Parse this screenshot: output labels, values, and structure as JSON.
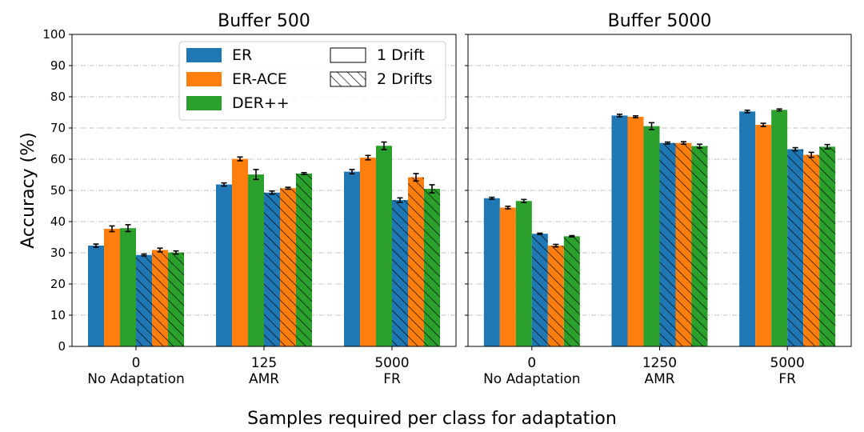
{
  "chart_data": {
    "type": "bar",
    "ylabel": "Accuracy (%)",
    "xlabel": "Samples required per class for adaptation",
    "ylim": [
      0,
      100
    ],
    "yticks": [
      0,
      10,
      20,
      30,
      40,
      50,
      60,
      70,
      80,
      90,
      100
    ],
    "grid": "horizontal dashed",
    "legend": {
      "placement": "top-left of first panel",
      "methods": [
        {
          "name": "ER",
          "color": "#1f77b4"
        },
        {
          "name": "ER-ACE",
          "color": "#ff7f0e"
        },
        {
          "name": "DER++",
          "color": "#2ca02c"
        }
      ],
      "drifts": [
        {
          "name": "1 Drift",
          "hatch": false
        },
        {
          "name": "2 Drifts",
          "hatch": true
        }
      ]
    },
    "panels": [
      {
        "title": "Buffer 500",
        "categories": [
          {
            "value": "0",
            "name": "No Adaptation"
          },
          {
            "value": "125",
            "name": "AMR"
          },
          {
            "value": "5000",
            "name": "FR"
          }
        ],
        "series": [
          {
            "method": "ER",
            "drift": "1 Drift",
            "values": [
              32.3,
              51.9,
              56.0
            ],
            "errors": [
              0.5,
              0.5,
              0.7
            ]
          },
          {
            "method": "ER-ACE",
            "drift": "1 Drift",
            "values": [
              37.7,
              60.1,
              60.5
            ],
            "errors": [
              0.9,
              0.6,
              0.7
            ]
          },
          {
            "method": "DER++",
            "drift": "1 Drift",
            "values": [
              37.9,
              55.1,
              64.3
            ],
            "errors": [
              1.1,
              1.6,
              1.2
            ]
          },
          {
            "method": "ER",
            "drift": "2 Drifts",
            "values": [
              29.3,
              49.3,
              46.9
            ],
            "errors": [
              0.3,
              0.5,
              0.7
            ]
          },
          {
            "method": "ER-ACE",
            "drift": "2 Drifts",
            "values": [
              30.9,
              50.7,
              54.2
            ],
            "errors": [
              0.6,
              0.3,
              1.2
            ]
          },
          {
            "method": "DER++",
            "drift": "2 Drifts",
            "values": [
              30.1,
              55.4,
              50.5
            ],
            "errors": [
              0.5,
              0.3,
              1.3
            ]
          }
        ]
      },
      {
        "title": "Buffer 5000",
        "categories": [
          {
            "value": "0",
            "name": "No Adaptation"
          },
          {
            "value": "1250",
            "name": "AMR"
          },
          {
            "value": "5000",
            "name": "FR"
          }
        ],
        "series": [
          {
            "method": "ER",
            "drift": "1 Drift",
            "values": [
              47.5,
              74.0,
              75.3
            ],
            "errors": [
              0.3,
              0.4,
              0.4
            ]
          },
          {
            "method": "ER-ACE",
            "drift": "1 Drift",
            "values": [
              44.5,
              73.6,
              71.0
            ],
            "errors": [
              0.4,
              0.3,
              0.5
            ]
          },
          {
            "method": "DER++",
            "drift": "1 Drift",
            "values": [
              46.6,
              70.6,
              75.8
            ],
            "errors": [
              0.5,
              1.1,
              0.3
            ]
          },
          {
            "method": "ER",
            "drift": "2 Drifts",
            "values": [
              36.1,
              65.2,
              63.2
            ],
            "errors": [
              0.2,
              0.3,
              0.5
            ]
          },
          {
            "method": "ER-ACE",
            "drift": "2 Drifts",
            "values": [
              32.3,
              65.2,
              61.4
            ],
            "errors": [
              0.4,
              0.4,
              0.8
            ]
          },
          {
            "method": "DER++",
            "drift": "2 Drifts",
            "values": [
              35.3,
              64.2,
              64.0
            ],
            "errors": [
              0.2,
              0.6,
              0.7
            ]
          }
        ]
      }
    ]
  }
}
